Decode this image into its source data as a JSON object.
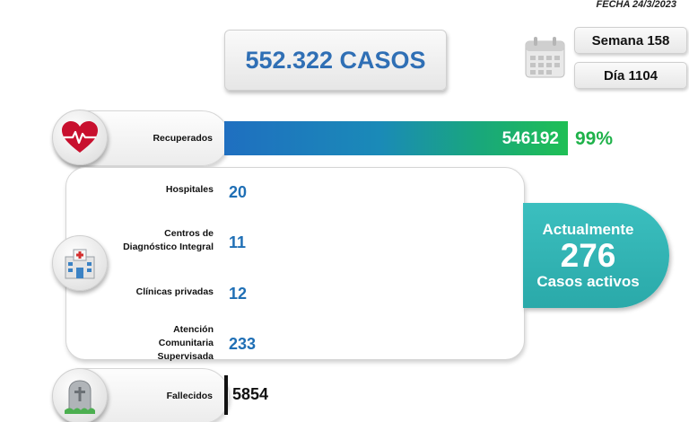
{
  "header": {
    "date": "FECHA 24/3/2023",
    "total_cases": "552.322 CASOS",
    "week": "Semana 158",
    "day": "Día 1104"
  },
  "recovered": {
    "label": "Recuperados",
    "value": "546192",
    "percent": "99%"
  },
  "hospitalized": {
    "items": [
      {
        "label": "Hospitales",
        "value": "20"
      },
      {
        "label_line1": "Centros de",
        "label_line2": "Diagnóstico Integral",
        "value": "11"
      },
      {
        "label": "Clínicas privadas",
        "value": "12"
      },
      {
        "label_line1": "Atención",
        "label_line2": "Comunitaria",
        "label_line3": "Supervisada",
        "value": "233"
      }
    ]
  },
  "active": {
    "line1": "Actualmente",
    "count": "276",
    "line3": "Casos activos"
  },
  "deceased": {
    "label": "Fallecidos",
    "value": "5854"
  },
  "colors": {
    "accent_blue": "#2f6fb5",
    "recovered_green": "#1fb24a",
    "active_teal": "#2aa9a9"
  },
  "icons": {
    "recovered": "heart-pulse-icon",
    "hospital": "hospital-icon",
    "calendar": "calendar-icon",
    "deceased": "gravestone-icon"
  }
}
